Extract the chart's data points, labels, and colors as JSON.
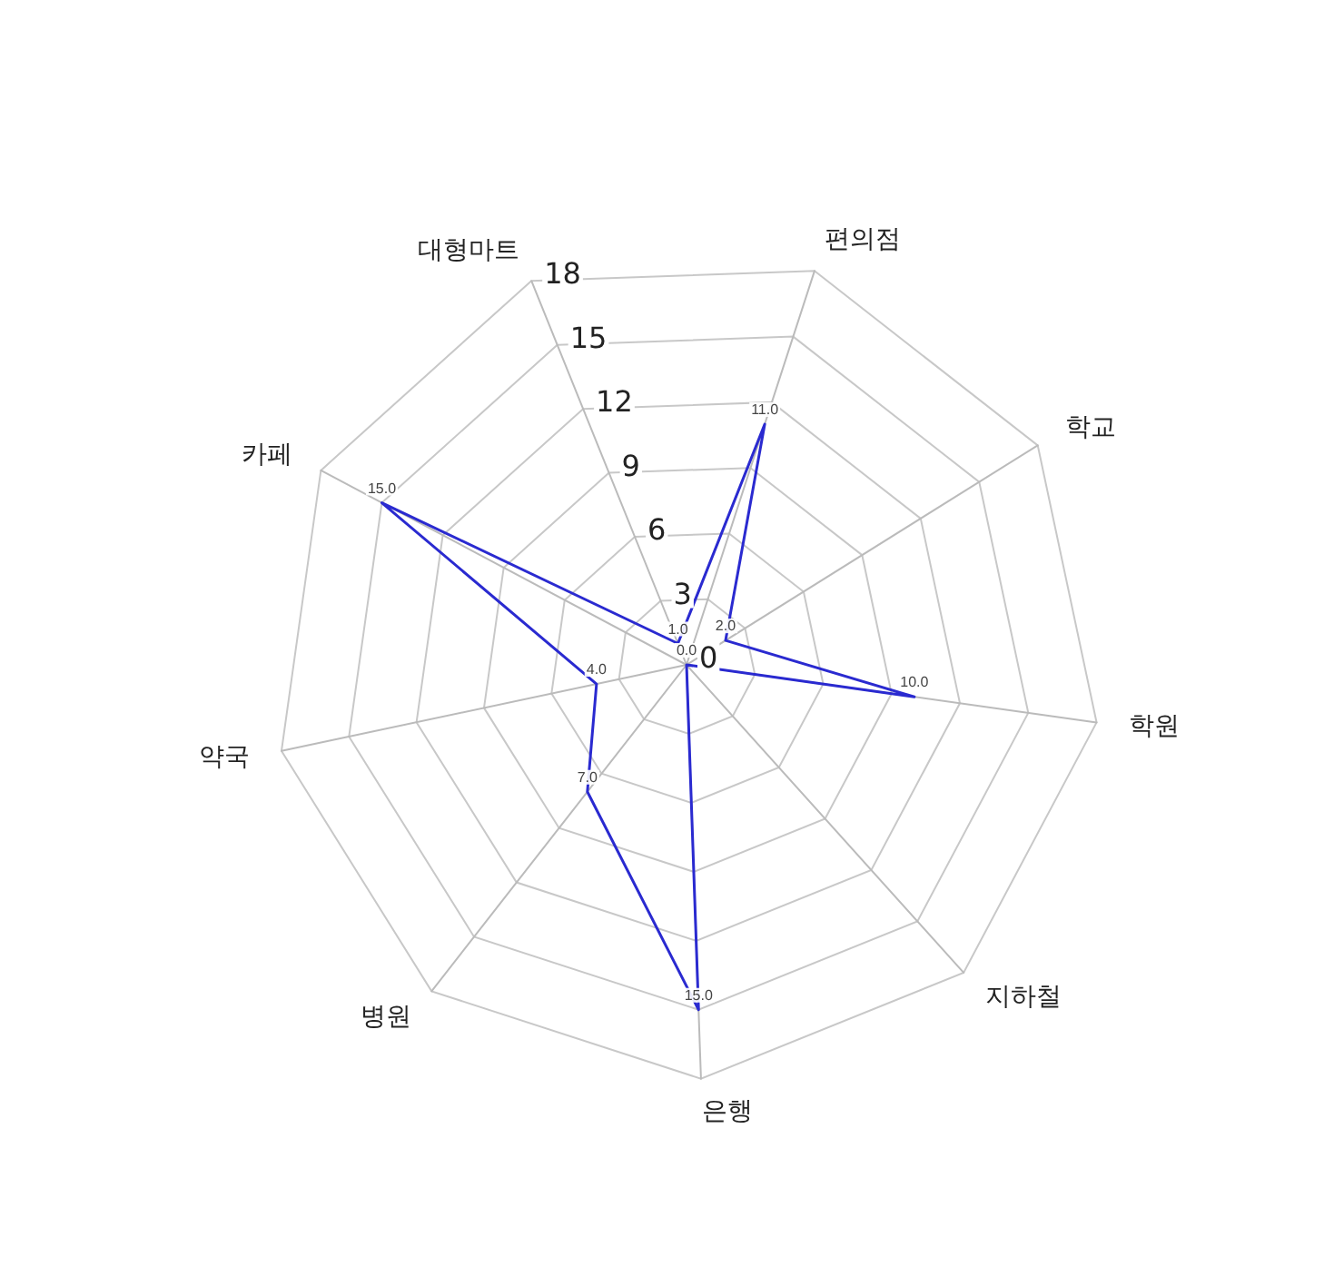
{
  "chart_data": {
    "type": "radar",
    "categories": [
      "대형마트",
      "편의점",
      "학교",
      "학원",
      "지하철",
      "은행",
      "병원",
      "약국",
      "카페"
    ],
    "series": [
      {
        "color": "#2a2ad0",
        "values": [
          1,
          11,
          2,
          10,
          0,
          15,
          7,
          4,
          15
        ],
        "value_labels": [
          "1.0",
          "11.0",
          "2.0",
          "10.0",
          "0.0",
          "15.0",
          "7.0",
          "4.0",
          "15.0"
        ]
      }
    ],
    "ylim": [
      0,
      18
    ],
    "yticks": [
      0,
      3,
      6,
      9,
      12,
      15,
      18
    ],
    "grid": true,
    "marker": "none"
  }
}
